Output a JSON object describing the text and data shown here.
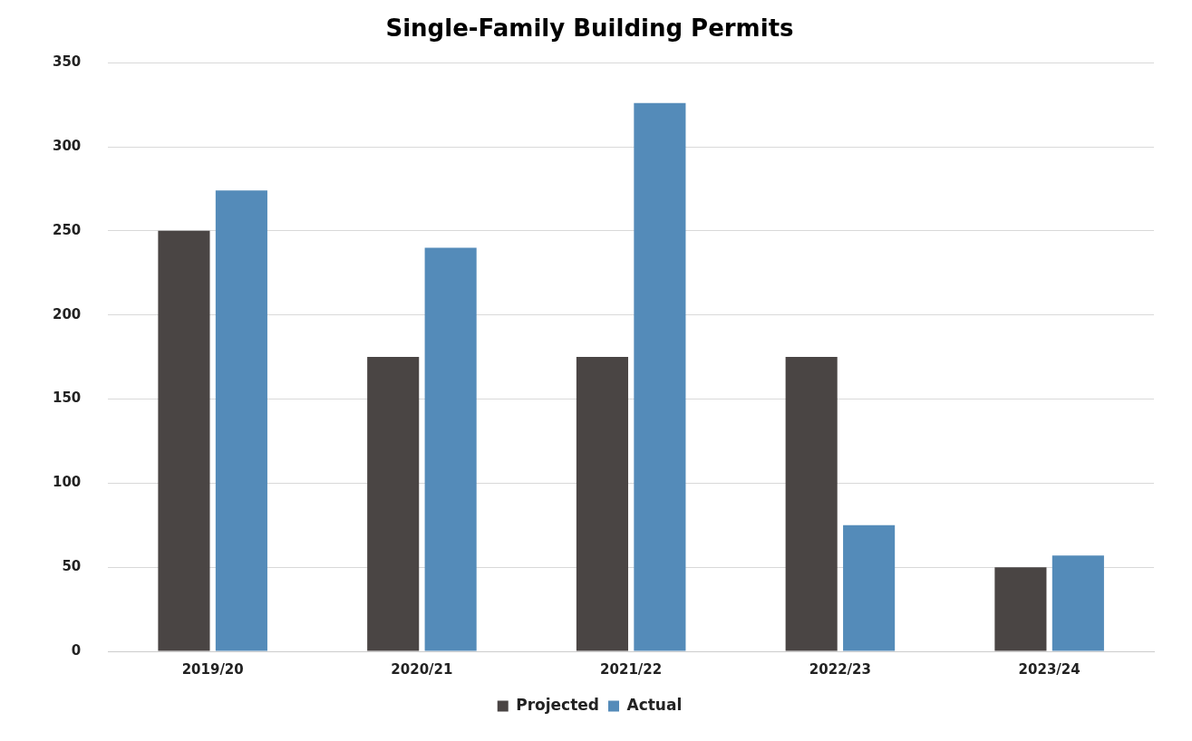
{
  "chart_data": {
    "type": "bar",
    "title": "Single-Family Building Permits",
    "categories": [
      "2019/20",
      "2020/21",
      "2021/22",
      "2022/23",
      "2023/24"
    ],
    "series": [
      {
        "name": "Projected",
        "color": "#4a4544",
        "values": [
          250,
          175,
          175,
          175,
          50
        ]
      },
      {
        "name": "Actual",
        "color": "#548bb9",
        "values": [
          274,
          240,
          326,
          75,
          57
        ]
      }
    ],
    "ylim": [
      0,
      350
    ],
    "yticks": [
      0,
      50,
      100,
      150,
      200,
      250,
      300,
      350
    ],
    "grid": "y",
    "legend": "bottom"
  }
}
